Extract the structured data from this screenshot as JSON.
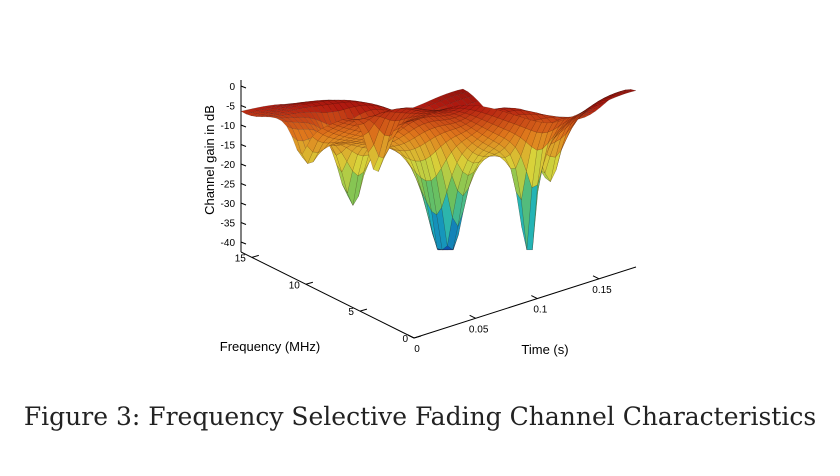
{
  "chart_data": {
    "type": "surface",
    "zlabel": "Channel gain in dB",
    "ylabel": "Frequency (MHz)",
    "xlabel": "Time (s)",
    "z_ticks": [
      "0",
      "-5",
      "-10",
      "-15",
      "-20",
      "-25",
      "-30",
      "-35",
      "-40"
    ],
    "z_tick_values": [
      0,
      -5,
      -10,
      -15,
      -20,
      -25,
      -30,
      -35,
      -40
    ],
    "zlim": [
      -42,
      3
    ],
    "freq_ticks": [
      "15",
      "10",
      "5",
      "0"
    ],
    "freq_tick_values": [
      15,
      10,
      5,
      0
    ],
    "freq_range": [
      0,
      16
    ],
    "time_ticks": [
      "0",
      "0.05",
      "0.1",
      "0.15"
    ],
    "time_tick_values": [
      0,
      0.05,
      0.1,
      0.15
    ],
    "time_range": [
      0,
      0.18
    ],
    "colormap": [
      "#0b4fb0",
      "#1bb2c0",
      "#6fc15a",
      "#d8d23a",
      "#e07a1c",
      "#b21a10",
      "#7d0e08"
    ]
  },
  "caption": "Figure 3: Frequency Selective Fading Channel Characteristics"
}
